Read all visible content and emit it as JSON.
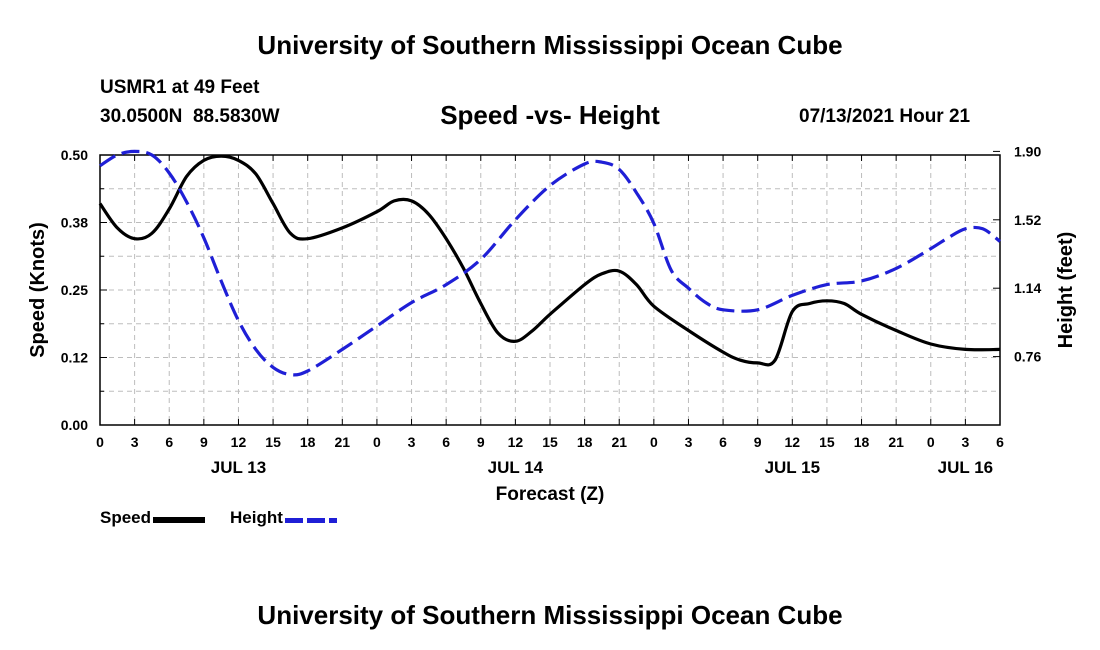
{
  "page_title": "University of Southern Mississippi Ocean Cube",
  "footer_title": "University of Southern Mississippi Ocean Cube",
  "station_name": "USMR1 at 49 Feet",
  "station_coords": "30.0500N  88.5830W",
  "chart_title": "Speed -vs- Height",
  "date_stamp": "07/13/2021 Hour 21",
  "colors": {
    "speed": "#000000",
    "height": "#1f1fd6",
    "grid": "#bdbdbd"
  },
  "legend": {
    "speed_label": "Speed",
    "height_label": "Height"
  },
  "chart_data": {
    "type": "line",
    "title": "Speed -vs- Height",
    "xlabel": "Forecast (Z)",
    "ylabel": "Speed (Knots)",
    "ylabel_right": "Height (feet)",
    "x_range": [
      0,
      78
    ],
    "ylim": [
      0,
      0.5
    ],
    "ylim_right": [
      0.38,
      1.88
    ],
    "x_ticks": [
      0,
      3,
      6,
      9,
      12,
      15,
      18,
      21,
      24,
      27,
      30,
      33,
      36,
      39,
      42,
      45,
      48,
      51,
      54,
      57,
      60,
      63,
      66,
      69,
      72,
      75,
      78
    ],
    "x_tick_labels": [
      "0",
      "3",
      "6",
      "9",
      "12",
      "15",
      "18",
      "21",
      "0",
      "3",
      "6",
      "9",
      "12",
      "15",
      "18",
      "21",
      "0",
      "3",
      "6",
      "9",
      "12",
      "15",
      "18",
      "21",
      "0",
      "3",
      "6"
    ],
    "day_labels": [
      {
        "x": 12,
        "label": "JUL 13"
      },
      {
        "x": 36,
        "label": "JUL 14"
      },
      {
        "x": 60,
        "label": "JUL 15"
      },
      {
        "x": 75,
        "label": "JUL 16"
      }
    ],
    "y_ticks": [
      0,
      0.125,
      0.25,
      0.375,
      0.5
    ],
    "y_tick_labels": [
      "0.00",
      "0.12",
      "0.25",
      "0.38",
      "0.50"
    ],
    "y_ticks_right": [
      0.76,
      1.14,
      1.52,
      1.9
    ],
    "y_tick_labels_right": [
      "0.76",
      "1.14",
      "1.52",
      "1.90"
    ],
    "series": [
      {
        "name": "Speed",
        "axis": "left",
        "style": "solid",
        "x": [
          0,
          1.5,
          3,
          4.5,
          6,
          7.5,
          9,
          10.5,
          12,
          13.5,
          15,
          16.5,
          18,
          21,
          24,
          25.5,
          27,
          28.5,
          30,
          31.5,
          33,
          34.5,
          36,
          37.5,
          39,
          42,
          43.5,
          45,
          46.5,
          48,
          51,
          54,
          55.5,
          57,
          58.5,
          60,
          61.5,
          63,
          64.5,
          66,
          69,
          72,
          75,
          78
        ],
        "values": [
          0.41,
          0.365,
          0.345,
          0.355,
          0.4,
          0.46,
          0.49,
          0.498,
          0.49,
          0.465,
          0.41,
          0.355,
          0.345,
          0.365,
          0.395,
          0.415,
          0.415,
          0.39,
          0.345,
          0.29,
          0.225,
          0.17,
          0.155,
          0.175,
          0.205,
          0.26,
          0.28,
          0.285,
          0.26,
          0.22,
          0.175,
          0.135,
          0.12,
          0.115,
          0.12,
          0.21,
          0.225,
          0.23,
          0.225,
          0.205,
          0.175,
          0.15,
          0.14,
          0.14
        ]
      },
      {
        "name": "Height",
        "axis": "right",
        "style": "dashed",
        "x": [
          0,
          1.5,
          3,
          4.5,
          6,
          7.5,
          9,
          10.5,
          12,
          13.5,
          15,
          16.5,
          18,
          21,
          24,
          27,
          30,
          33,
          36,
          39,
          42,
          43.5,
          45,
          46.5,
          48,
          49.5,
          51,
          52.5,
          54,
          57,
          60,
          63,
          66,
          69,
          72,
          73.5,
          75,
          76.5,
          78
        ],
        "values": [
          1.82,
          1.88,
          1.9,
          1.88,
          1.78,
          1.62,
          1.42,
          1.18,
          0.96,
          0.8,
          0.7,
          0.66,
          0.68,
          0.8,
          0.93,
          1.06,
          1.16,
          1.3,
          1.52,
          1.71,
          1.83,
          1.84,
          1.8,
          1.67,
          1.5,
          1.24,
          1.14,
          1.06,
          1.02,
          1.02,
          1.1,
          1.16,
          1.18,
          1.25,
          1.36,
          1.42,
          1.47,
          1.47,
          1.4
        ]
      }
    ]
  }
}
